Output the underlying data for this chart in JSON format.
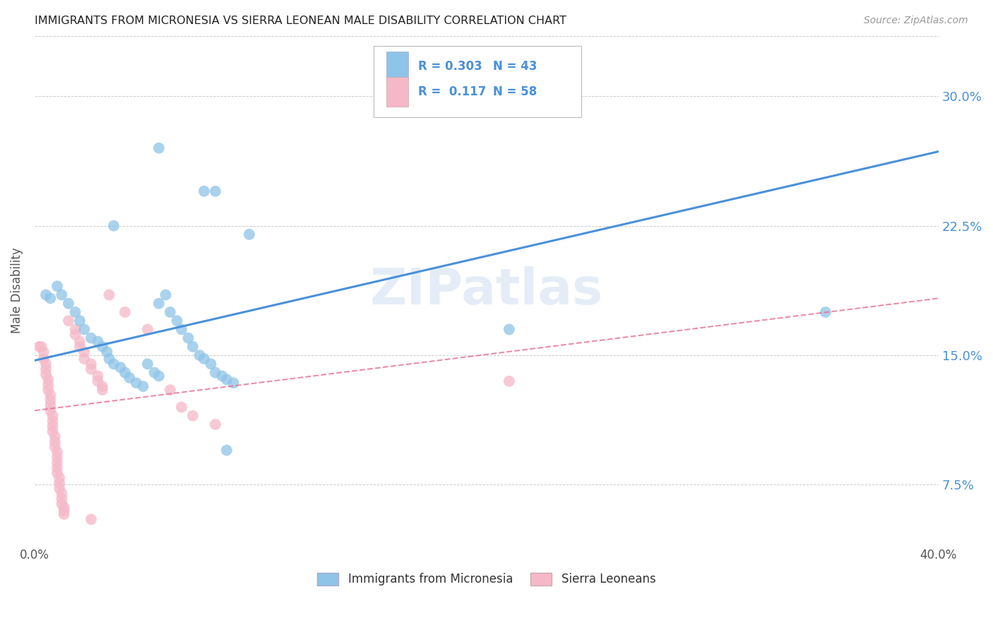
{
  "title": "IMMIGRANTS FROM MICRONESIA VS SIERRA LEONEAN MALE DISABILITY CORRELATION CHART",
  "source": "Source: ZipAtlas.com",
  "ylabel": "Male Disability",
  "yticks": [
    "7.5%",
    "15.0%",
    "22.5%",
    "30.0%"
  ],
  "ytick_vals": [
    0.075,
    0.15,
    0.225,
    0.3
  ],
  "xlim": [
    0.0,
    0.4
  ],
  "ylim": [
    0.04,
    0.335
  ],
  "color_blue": "#8ec4e8",
  "color_pink": "#f5b8c8",
  "color_blue_line": "#4a90d9",
  "color_pink_line": "#e87090",
  "color_pink_dash": "#e87090",
  "color_grid": "#cccccc",
  "color_title": "#222222",
  "watermark": "ZIPatlas",
  "blue_points": [
    [
      0.005,
      0.185
    ],
    [
      0.007,
      0.183
    ],
    [
      0.01,
      0.19
    ],
    [
      0.012,
      0.185
    ],
    [
      0.015,
      0.18
    ],
    [
      0.018,
      0.175
    ],
    [
      0.02,
      0.17
    ],
    [
      0.022,
      0.165
    ],
    [
      0.025,
      0.16
    ],
    [
      0.028,
      0.158
    ],
    [
      0.03,
      0.155
    ],
    [
      0.032,
      0.152
    ],
    [
      0.033,
      0.148
    ],
    [
      0.035,
      0.145
    ],
    [
      0.038,
      0.143
    ],
    [
      0.04,
      0.14
    ],
    [
      0.042,
      0.137
    ],
    [
      0.045,
      0.134
    ],
    [
      0.048,
      0.132
    ],
    [
      0.05,
      0.145
    ],
    [
      0.053,
      0.14
    ],
    [
      0.055,
      0.138
    ],
    [
      0.055,
      0.18
    ],
    [
      0.058,
      0.185
    ],
    [
      0.06,
      0.175
    ],
    [
      0.063,
      0.17
    ],
    [
      0.065,
      0.165
    ],
    [
      0.068,
      0.16
    ],
    [
      0.07,
      0.155
    ],
    [
      0.073,
      0.15
    ],
    [
      0.075,
      0.148
    ],
    [
      0.078,
      0.145
    ],
    [
      0.08,
      0.14
    ],
    [
      0.083,
      0.138
    ],
    [
      0.085,
      0.136
    ],
    [
      0.088,
      0.134
    ],
    [
      0.035,
      0.225
    ],
    [
      0.055,
      0.27
    ],
    [
      0.075,
      0.245
    ],
    [
      0.08,
      0.245
    ],
    [
      0.095,
      0.22
    ],
    [
      0.21,
      0.165
    ],
    [
      0.35,
      0.175
    ],
    [
      0.085,
      0.095
    ]
  ],
  "pink_points": [
    [
      0.002,
      0.155
    ],
    [
      0.003,
      0.155
    ],
    [
      0.004,
      0.152
    ],
    [
      0.004,
      0.148
    ],
    [
      0.005,
      0.145
    ],
    [
      0.005,
      0.142
    ],
    [
      0.005,
      0.139
    ],
    [
      0.006,
      0.136
    ],
    [
      0.006,
      0.133
    ],
    [
      0.006,
      0.13
    ],
    [
      0.007,
      0.127
    ],
    [
      0.007,
      0.124
    ],
    [
      0.007,
      0.121
    ],
    [
      0.007,
      0.118
    ],
    [
      0.008,
      0.115
    ],
    [
      0.008,
      0.112
    ],
    [
      0.008,
      0.109
    ],
    [
      0.008,
      0.106
    ],
    [
      0.009,
      0.103
    ],
    [
      0.009,
      0.1
    ],
    [
      0.009,
      0.097
    ],
    [
      0.01,
      0.094
    ],
    [
      0.01,
      0.091
    ],
    [
      0.01,
      0.088
    ],
    [
      0.01,
      0.085
    ],
    [
      0.01,
      0.082
    ],
    [
      0.011,
      0.079
    ],
    [
      0.011,
      0.076
    ],
    [
      0.011,
      0.073
    ],
    [
      0.012,
      0.07
    ],
    [
      0.012,
      0.067
    ],
    [
      0.012,
      0.064
    ],
    [
      0.013,
      0.062
    ],
    [
      0.013,
      0.06
    ],
    [
      0.013,
      0.058
    ],
    [
      0.015,
      0.17
    ],
    [
      0.018,
      0.165
    ],
    [
      0.018,
      0.162
    ],
    [
      0.02,
      0.158
    ],
    [
      0.02,
      0.155
    ],
    [
      0.022,
      0.152
    ],
    [
      0.022,
      0.148
    ],
    [
      0.025,
      0.145
    ],
    [
      0.025,
      0.142
    ],
    [
      0.028,
      0.138
    ],
    [
      0.028,
      0.135
    ],
    [
      0.03,
      0.132
    ],
    [
      0.03,
      0.13
    ],
    [
      0.033,
      0.185
    ],
    [
      0.04,
      0.175
    ],
    [
      0.05,
      0.165
    ],
    [
      0.06,
      0.13
    ],
    [
      0.065,
      0.12
    ],
    [
      0.07,
      0.115
    ],
    [
      0.08,
      0.11
    ],
    [
      0.025,
      0.055
    ],
    [
      0.21,
      0.135
    ]
  ],
  "blue_line": [
    [
      0.0,
      0.147
    ],
    [
      0.4,
      0.268
    ]
  ],
  "pink_line": [
    [
      0.0,
      0.118
    ],
    [
      0.4,
      0.183
    ]
  ]
}
